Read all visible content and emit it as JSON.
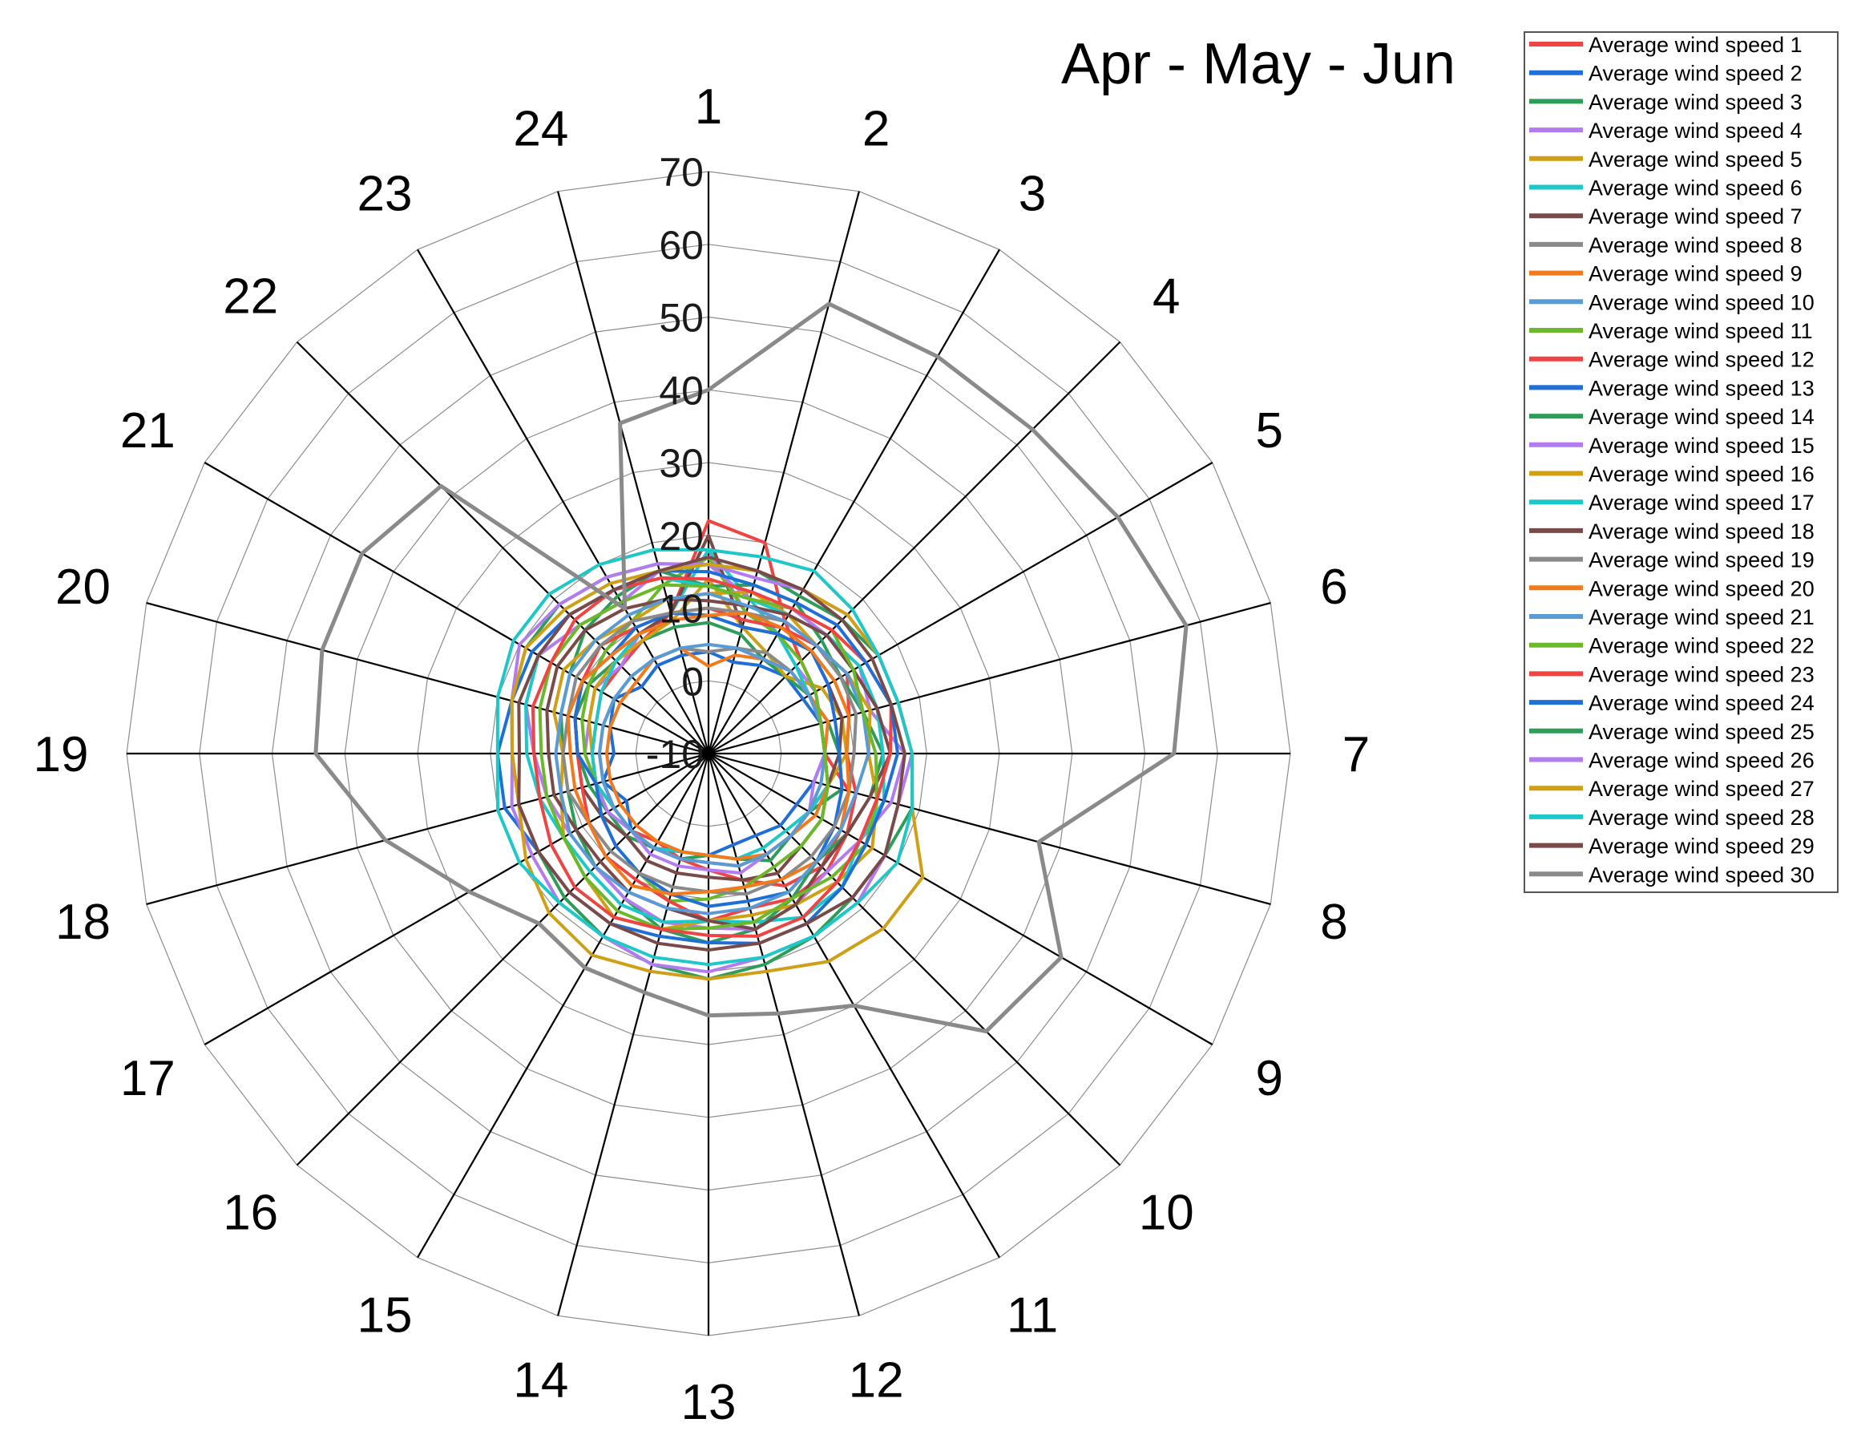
{
  "chart_data": {
    "type": "radar",
    "title": "Apr - May - Jun",
    "categories": [
      "1",
      "2",
      "3",
      "4",
      "5",
      "6",
      "7",
      "8",
      "9",
      "10",
      "11",
      "12",
      "13",
      "14",
      "15",
      "16",
      "17",
      "18",
      "19",
      "20",
      "21",
      "22",
      "23",
      "24"
    ],
    "r_ticks": [
      "-10",
      "0",
      "10",
      "20",
      "30",
      "40",
      "50",
      "60",
      "70"
    ],
    "rlim": [
      -10,
      70
    ],
    "grid": true,
    "legend_position": "top-right",
    "series": [
      {
        "name": "Average wind speed 1",
        "color": "#ef4444",
        "values": [
          22,
          20,
          11,
          8,
          7,
          6,
          6,
          10,
          11,
          12,
          11,
          8,
          6,
          5,
          4,
          5,
          5,
          6,
          6,
          6,
          7,
          7,
          8,
          10
        ]
      },
      {
        "name": "Average wind speed 2",
        "color": "#1f6fd6",
        "values": [
          4,
          3,
          4,
          5,
          5,
          6,
          6,
          5,
          4,
          4,
          3,
          3,
          4,
          4,
          5,
          5,
          3,
          5,
          3,
          4,
          5,
          3,
          4,
          4
        ]
      },
      {
        "name": "Average wind speed 3",
        "color": "#2e9d5a",
        "values": [
          8,
          7,
          5,
          5,
          6,
          7,
          8,
          9,
          6,
          6,
          7,
          5,
          4,
          5,
          5,
          6,
          6,
          7,
          8,
          9,
          9,
          8,
          8,
          8
        ]
      },
      {
        "name": "Average wind speed 4",
        "color": "#b27cf0",
        "values": [
          18,
          10,
          9,
          7,
          7,
          6,
          6,
          5,
          6,
          6,
          6,
          7,
          6,
          6,
          6,
          5,
          6,
          6,
          7,
          7,
          8,
          7,
          9,
          10
        ]
      },
      {
        "name": "Average wind speed 5",
        "color": "#cfa015",
        "values": [
          14,
          8,
          6,
          5,
          8,
          9,
          9,
          7,
          6,
          6,
          6,
          6,
          5,
          5,
          5,
          5,
          5,
          6,
          6,
          7,
          8,
          8,
          8,
          9
        ]
      },
      {
        "name": "Average wind speed 6",
        "color": "#1ec8c8",
        "values": [
          18,
          12,
          9,
          7,
          6,
          6,
          6,
          7,
          6,
          5,
          5,
          5,
          4,
          4,
          5,
          5,
          5,
          6,
          6,
          6,
          7,
          8,
          9,
          10
        ]
      },
      {
        "name": "Average wind speed 7",
        "color": "#7a4a48",
        "values": [
          20,
          8,
          9,
          10,
          9,
          9,
          8,
          7,
          8,
          8,
          9,
          8,
          7,
          7,
          7,
          6,
          7,
          8,
          8,
          9,
          10,
          9,
          9,
          10
        ]
      },
      {
        "name": "Average wind speed 8",
        "color": "#8a8a8a",
        "values": [
          4,
          5,
          6,
          6,
          6,
          6,
          6,
          6,
          6,
          6,
          6,
          6,
          5,
          5,
          5,
          5,
          5,
          5,
          5,
          5,
          5,
          5,
          5,
          5
        ]
      },
      {
        "name": "Average wind speed 9",
        "color": "#f07a1c",
        "values": [
          2,
          4,
          5,
          6,
          6,
          7,
          6,
          7,
          7,
          6,
          6,
          5,
          4,
          4,
          4,
          4,
          4,
          4,
          4,
          4,
          4,
          4,
          5,
          5
        ]
      },
      {
        "name": "Average wind speed 10",
        "color": "#5b9bd5",
        "values": [
          5,
          5,
          5,
          6,
          6,
          6,
          6,
          6,
          6,
          6,
          6,
          6,
          5,
          5,
          5,
          5,
          5,
          5,
          5,
          5,
          5,
          5,
          5,
          5
        ]
      },
      {
        "name": "Average wind speed 11",
        "color": "#6cb82b",
        "values": [
          17,
          10,
          9,
          8,
          7,
          6,
          6,
          7,
          8,
          8,
          8,
          9,
          10,
          11,
          9,
          8,
          7,
          6,
          7,
          8,
          9,
          10,
          11,
          14
        ]
      },
      {
        "name": "Average wind speed 12",
        "color": "#ef4444",
        "values": [
          10,
          9,
          10,
          11,
          12,
          10,
          9,
          11,
          12,
          13,
          13,
          12,
          13,
          11,
          10,
          10,
          9,
          8,
          8,
          9,
          10,
          11,
          10,
          10
        ]
      },
      {
        "name": "Average wind speed 13",
        "color": "#1f6fd6",
        "values": [
          9,
          8,
          9,
          10,
          9,
          8,
          8,
          9,
          10,
          11,
          12,
          11,
          11,
          10,
          9,
          8,
          7,
          6,
          8,
          9,
          10,
          9,
          10,
          10
        ]
      },
      {
        "name": "Average wind speed 14",
        "color": "#2e9d5a",
        "values": [
          13,
          14,
          14,
          12,
          11,
          12,
          14,
          13,
          12,
          11,
          13,
          15,
          16,
          15,
          13,
          12,
          11,
          10,
          10,
          11,
          12,
          14,
          15,
          16
        ]
      },
      {
        "name": "Average wind speed 15",
        "color": "#b27cf0",
        "values": [
          16,
          12,
          13,
          13,
          14,
          13,
          17,
          16,
          14,
          13,
          14,
          15,
          14,
          14,
          13,
          12,
          12,
          13,
          14,
          16,
          17,
          15,
          14,
          16
        ]
      },
      {
        "name": "Average wind speed 16",
        "color": "#cfa015",
        "values": [
          12,
          13,
          12,
          11,
          12,
          13,
          12,
          14,
          16,
          15,
          14,
          13,
          13,
          15,
          16,
          14,
          13,
          11,
          10,
          12,
          13,
          12,
          11,
          12
        ]
      },
      {
        "name": "Average wind speed 17",
        "color": "#1ec8c8",
        "values": [
          13,
          12,
          12,
          13,
          14,
          14,
          14,
          15,
          14,
          16,
          16,
          14,
          13,
          14,
          14,
          13,
          13,
          14,
          15,
          16,
          17,
          17,
          16,
          15
        ]
      },
      {
        "name": "Average wind speed 18",
        "color": "#7a4a48",
        "values": [
          11,
          11,
          12,
          13,
          13,
          14,
          15,
          13,
          12,
          12,
          14,
          15,
          13,
          12,
          12,
          11,
          11,
          12,
          12,
          13,
          14,
          14,
          13,
          12
        ]
      },
      {
        "name": "Average wind speed 19",
        "color": "#8a8a8a",
        "values": [
          10,
          10,
          11,
          11,
          11,
          11,
          10,
          10,
          10,
          10,
          10,
          10,
          9,
          9,
          9,
          9,
          9,
          10,
          10,
          10,
          11,
          11,
          11,
          10
        ]
      },
      {
        "name": "Average wind speed 20",
        "color": "#f07a1c",
        "values": [
          9,
          10,
          10,
          10,
          10,
          10,
          9,
          10,
          11,
          11,
          10,
          9,
          9,
          10,
          11,
          10,
          9,
          9,
          9,
          10,
          10,
          9,
          9,
          9
        ]
      },
      {
        "name": "Average wind speed 21",
        "color": "#5b9bd5",
        "values": [
          12,
          11,
          11,
          11,
          12,
          12,
          12,
          11,
          11,
          11,
          12,
          12,
          12,
          12,
          12,
          12,
          12,
          11,
          11,
          11,
          12,
          12,
          12,
          12
        ]
      },
      {
        "name": "Average wind speed 22",
        "color": "#6cb82b",
        "values": [
          13,
          12,
          13,
          14,
          13,
          12,
          13,
          14,
          15,
          14,
          13,
          14,
          14,
          15,
          15,
          14,
          13,
          13,
          13,
          14,
          15,
          15,
          14,
          14
        ]
      },
      {
        "name": "Average wind speed 23",
        "color": "#ef4444",
        "values": [
          14,
          13,
          13,
          14,
          15,
          16,
          15,
          14,
          14,
          15,
          16,
          16,
          15,
          15,
          16,
          16,
          15,
          14,
          14,
          15,
          15,
          16,
          16,
          15
        ]
      },
      {
        "name": "Average wind speed 24",
        "color": "#1f6fd6",
        "values": [
          15,
          14,
          14,
          15,
          15,
          16,
          16,
          15,
          15,
          16,
          17,
          17,
          16,
          16,
          17,
          17,
          17,
          19,
          19,
          18,
          18,
          17,
          16,
          16
        ]
      },
      {
        "name": "Average wind speed 25",
        "color": "#2e9d5a",
        "values": [
          16,
          16,
          15,
          16,
          17,
          17,
          18,
          19,
          18,
          18,
          19,
          20,
          21,
          20,
          19,
          18,
          17,
          17,
          17,
          18,
          19,
          19,
          18,
          17
        ]
      },
      {
        "name": "Average wind speed 26",
        "color": "#b27cf0",
        "values": [
          16,
          15,
          16,
          17,
          17,
          17,
          18,
          17,
          18,
          19,
          19,
          19,
          20,
          20,
          19,
          19,
          18,
          18,
          17,
          18,
          20,
          19,
          18,
          17
        ]
      },
      {
        "name": "Average wind speed 27",
        "color": "#cfa015",
        "values": [
          16,
          16,
          16,
          17,
          17,
          17,
          18,
          19,
          24,
          24,
          23,
          21,
          21,
          21,
          22,
          21,
          19,
          17,
          17,
          18,
          19,
          18,
          17,
          16
        ]
      },
      {
        "name": "Average wind speed 28",
        "color": "#1ec8c8",
        "values": [
          18,
          18,
          19,
          18,
          17,
          17,
          18,
          19,
          20,
          19,
          19,
          19,
          19,
          19,
          19,
          19,
          20,
          20,
          19,
          20,
          21,
          21,
          20,
          19
        ]
      },
      {
        "name": "Average wind speed 29",
        "color": "#7a4a48",
        "values": [
          17,
          16,
          16,
          16,
          16,
          16,
          17,
          17,
          18,
          18,
          17,
          17,
          17,
          17,
          17,
          17,
          17,
          17,
          16,
          17,
          17,
          17,
          16,
          16
        ]
      },
      {
        "name": "Average wind speed 30",
        "color": "#8a8a8a",
        "values": [
          40,
          54,
          53,
          53,
          55,
          58,
          54,
          37,
          46,
          44,
          30,
          27,
          26,
          24,
          24,
          23,
          28,
          36,
          44,
          45,
          45,
          42,
          13,
          37
        ]
      }
    ]
  }
}
